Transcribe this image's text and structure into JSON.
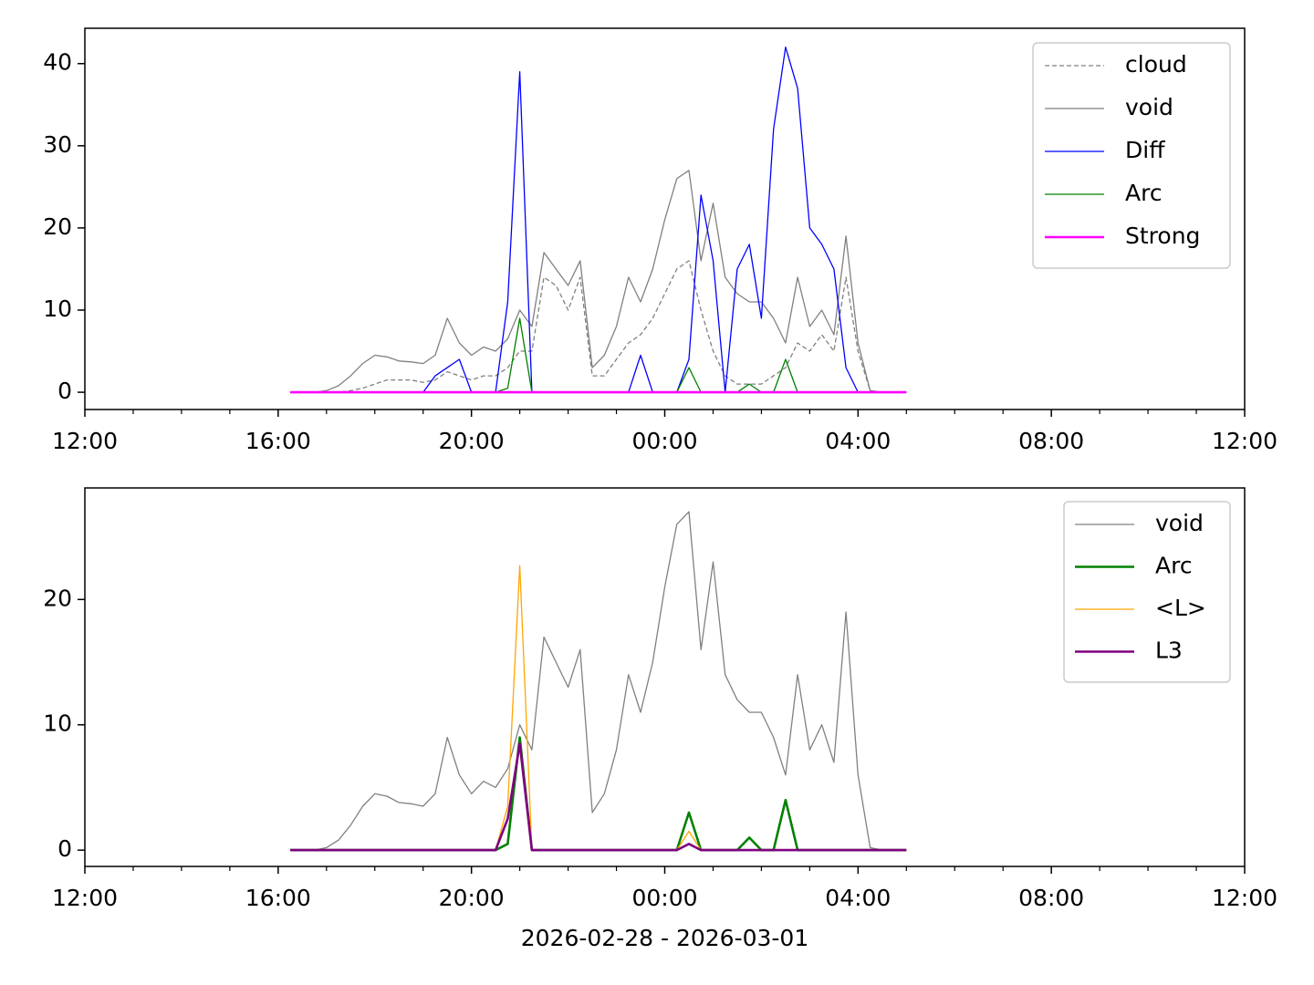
{
  "chart_data": [
    {
      "type": "line",
      "x": [
        4.25,
        4.5,
        4.75,
        5,
        5.25,
        5.5,
        5.75,
        6,
        6.25,
        6.5,
        6.75,
        7,
        7.25,
        7.5,
        7.75,
        8,
        8.25,
        8.5,
        8.75,
        9,
        9.25,
        9.5,
        9.75,
        10,
        10.25,
        10.5,
        10.75,
        11,
        11.25,
        11.5,
        11.75,
        12,
        12.25,
        12.5,
        12.75,
        13,
        13.25,
        13.5,
        13.75,
        14,
        14.25,
        14.5,
        14.75,
        15,
        15.25,
        15.5,
        15.75,
        16,
        16.25,
        16.5,
        16.75,
        17
      ],
      "series": [
        {
          "name": "cloud",
          "color": "#808080",
          "linewidth": 1.3,
          "linestyle": "dashed",
          "values": [
            0,
            0,
            0,
            0,
            0,
            0.2,
            0.5,
            1,
            1.5,
            1.5,
            1.5,
            1.2,
            1.5,
            2.5,
            2,
            1.5,
            2,
            2,
            3,
            5,
            5,
            14,
            13,
            10,
            14,
            2,
            2,
            4,
            6,
            7,
            9,
            12,
            15,
            16,
            10,
            5,
            2,
            1,
            1,
            1,
            2,
            3,
            6,
            5,
            7,
            5,
            14,
            5,
            0.2,
            0,
            0,
            0
          ]
        },
        {
          "name": "void",
          "color": "#808080",
          "linewidth": 1.3,
          "linestyle": "solid",
          "values": [
            0,
            0,
            0,
            0.2,
            0.8,
            2,
            3.5,
            4.5,
            4.3,
            3.8,
            3.7,
            3.5,
            4.5,
            9,
            6,
            4.5,
            5.5,
            5,
            6.5,
            10,
            8,
            17,
            15,
            13,
            16,
            3,
            4.5,
            8,
            14,
            11,
            15,
            21,
            26,
            27,
            16,
            23,
            14,
            12,
            11,
            11,
            9,
            6,
            14,
            8,
            10,
            7,
            19,
            6,
            0.2,
            0,
            0,
            0
          ]
        },
        {
          "name": "Diff",
          "color": "#0000ff",
          "linewidth": 1.3,
          "linestyle": "solid",
          "values": [
            0,
            0,
            0,
            0,
            0,
            0,
            0,
            0,
            0,
            0,
            0,
            0,
            2,
            3,
            4,
            0,
            0,
            0,
            11,
            39,
            0,
            0,
            0,
            0,
            0,
            0,
            0,
            0,
            0,
            4.5,
            0,
            0,
            0,
            4,
            24,
            16,
            0,
            15,
            18,
            9,
            32,
            42,
            37,
            20,
            18,
            15,
            3,
            0,
            0,
            0,
            0,
            0
          ]
        },
        {
          "name": "Arc",
          "color": "#008000",
          "linewidth": 1.3,
          "linestyle": "solid",
          "values": [
            0,
            0,
            0,
            0,
            0,
            0,
            0,
            0,
            0,
            0,
            0,
            0,
            0,
            0,
            0,
            0,
            0,
            0,
            0.5,
            9,
            0,
            0,
            0,
            0,
            0,
            0,
            0,
            0,
            0,
            0,
            0,
            0,
            0,
            3,
            0,
            0,
            0,
            0,
            1,
            0,
            0,
            4,
            0,
            0,
            0,
            0,
            0,
            0,
            0,
            0,
            0,
            0
          ]
        },
        {
          "name": "Strong",
          "color": "#ff00ff",
          "linewidth": 2.6,
          "linestyle": "solid",
          "values": [
            0,
            0,
            0,
            0,
            0,
            0,
            0,
            0,
            0,
            0,
            0,
            0,
            0,
            0,
            0,
            0,
            0,
            0,
            0,
            0,
            0,
            0,
            0,
            0,
            0,
            0,
            0,
            0,
            0,
            0,
            0,
            0,
            0,
            0,
            0,
            0,
            0,
            0,
            0,
            0,
            0,
            0,
            0,
            0,
            0,
            0,
            0,
            0,
            0,
            0,
            0,
            0
          ]
        }
      ],
      "xlim": [
        0,
        24
      ],
      "xticks": [
        {
          "value": 0,
          "label": "12:00"
        },
        {
          "value": 4,
          "label": "16:00"
        },
        {
          "value": 8,
          "label": "20:00"
        },
        {
          "value": 12,
          "label": "00:00"
        },
        {
          "value": 16,
          "label": "04:00"
        },
        {
          "value": 20,
          "label": "08:00"
        },
        {
          "value": 24,
          "label": "12:00"
        }
      ],
      "xminorticks": [
        1,
        2,
        3,
        5,
        6,
        7,
        9,
        10,
        11,
        13,
        14,
        15,
        17,
        18,
        19,
        21,
        22,
        23
      ],
      "ylim": [
        -2.1,
        44.3
      ],
      "yticks": [
        0,
        10,
        20,
        30,
        40
      ],
      "legend": "upper right"
    },
    {
      "type": "line",
      "xlabel": "2026-02-28 - 2026-03-01",
      "x": [
        4.25,
        4.5,
        4.75,
        5,
        5.25,
        5.5,
        5.75,
        6,
        6.25,
        6.5,
        6.75,
        7,
        7.25,
        7.5,
        7.75,
        8,
        8.25,
        8.5,
        8.75,
        9,
        9.25,
        9.5,
        9.75,
        10,
        10.25,
        10.5,
        10.75,
        11,
        11.25,
        11.5,
        11.75,
        12,
        12.25,
        12.5,
        12.75,
        13,
        13.25,
        13.5,
        13.75,
        14,
        14.25,
        14.5,
        14.75,
        15,
        15.25,
        15.5,
        15.75,
        16,
        16.25,
        16.5,
        16.75,
        17
      ],
      "series": [
        {
          "name": "void",
          "color": "#808080",
          "linewidth": 1.3,
          "linestyle": "solid",
          "values": [
            0,
            0,
            0,
            0.2,
            0.8,
            2,
            3.5,
            4.5,
            4.3,
            3.8,
            3.7,
            3.5,
            4.5,
            9,
            6,
            4.5,
            5.5,
            5,
            6.5,
            10,
            8,
            17,
            15,
            13,
            16,
            3,
            4.5,
            8,
            14,
            11,
            15,
            21,
            26,
            27,
            16,
            23,
            14,
            12,
            11,
            11,
            9,
            6,
            14,
            8,
            10,
            7,
            19,
            6,
            0.2,
            0,
            0,
            0
          ]
        },
        {
          "name": "Arc",
          "color": "#008000",
          "linewidth": 2.6,
          "linestyle": "solid",
          "values": [
            0,
            0,
            0,
            0,
            0,
            0,
            0,
            0,
            0,
            0,
            0,
            0,
            0,
            0,
            0,
            0,
            0,
            0,
            0.5,
            9,
            0,
            0,
            0,
            0,
            0,
            0,
            0,
            0,
            0,
            0,
            0,
            0,
            0,
            3,
            0,
            0,
            0,
            0,
            1,
            0,
            0,
            4,
            0,
            0,
            0,
            0,
            0,
            0,
            0,
            0,
            0,
            0
          ]
        },
        {
          "name": "<L>",
          "color": "#ffa500",
          "linewidth": 1.3,
          "linestyle": "solid",
          "values": [
            0,
            0,
            0,
            0,
            0,
            0,
            0,
            0,
            0,
            0,
            0,
            0,
            0,
            0,
            0,
            0,
            0,
            0,
            3.5,
            22.7,
            0,
            0,
            0,
            0,
            0,
            0,
            0,
            0,
            0,
            0,
            0,
            0,
            0,
            1.5,
            0,
            0,
            0,
            0,
            0,
            0,
            0,
            0,
            0,
            0,
            0,
            0,
            0,
            0,
            0,
            0,
            0,
            0
          ]
        },
        {
          "name": "L3",
          "color": "#800080",
          "linewidth": 2.6,
          "linestyle": "solid",
          "values": [
            0,
            0,
            0,
            0,
            0,
            0,
            0,
            0,
            0,
            0,
            0,
            0,
            0,
            0,
            0,
            0,
            0,
            0,
            2.5,
            8.5,
            0,
            0,
            0,
            0,
            0,
            0,
            0,
            0,
            0,
            0,
            0,
            0,
            0,
            0.5,
            0,
            0,
            0,
            0,
            0,
            0,
            0,
            0,
            0,
            0,
            0,
            0,
            0,
            0,
            0,
            0,
            0,
            0
          ]
        }
      ],
      "xlim": [
        0,
        24
      ],
      "xticks": [
        {
          "value": 0,
          "label": "12:00"
        },
        {
          "value": 4,
          "label": "16:00"
        },
        {
          "value": 8,
          "label": "20:00"
        },
        {
          "value": 12,
          "label": "00:00"
        },
        {
          "value": 16,
          "label": "04:00"
        },
        {
          "value": 20,
          "label": "08:00"
        },
        {
          "value": 24,
          "label": "12:00"
        }
      ],
      "xminorticks": [
        1,
        2,
        3,
        5,
        6,
        7,
        9,
        10,
        11,
        13,
        14,
        15,
        17,
        18,
        19,
        21,
        22,
        23
      ],
      "ylim": [
        -1.3,
        28.9
      ],
      "yticks": [
        0,
        10,
        20
      ],
      "legend": "upper right"
    }
  ]
}
